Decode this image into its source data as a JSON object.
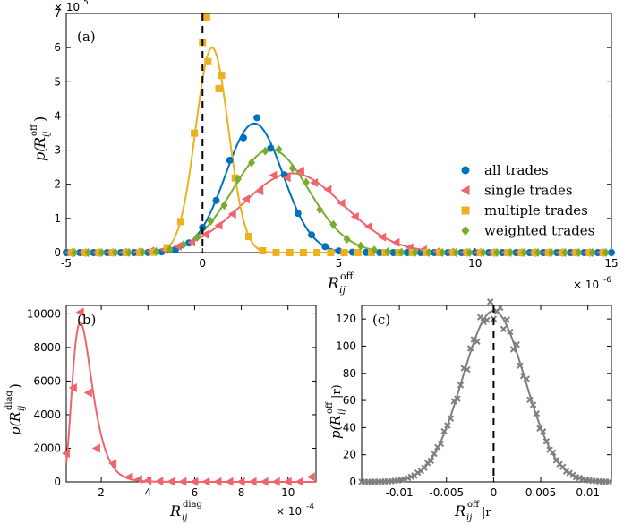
{
  "chart_data": [
    {
      "panel": "(a)",
      "type": "scatter",
      "xlabel_base": "R",
      "xlabel_sub": "ij",
      "xlabel_sup": "off",
      "ylabel_prefix": "p(",
      "ylabel_base": "R",
      "ylabel_sub": "ij",
      "ylabel_sup": "off",
      "ylabel_suffix": ")",
      "xlim": [
        -5,
        15
      ],
      "ylim": [
        0,
        7
      ],
      "xticks": [
        "-5",
        "0",
        "5",
        "10",
        "15"
      ],
      "yticks": [
        "0",
        "1",
        "2",
        "3",
        "4",
        "5",
        "6",
        "7"
      ],
      "x_exponent_base": "× 10",
      "x_exponent": "-6",
      "y_exponent_base": "× 10",
      "y_exponent": "5",
      "vline_x": 0,
      "legend_position": "right",
      "series": [
        {
          "name": "all trades",
          "color": "#0072BD",
          "marker": "circle",
          "mu": 1.9,
          "sigma": 1.05,
          "peak": 3.78
        },
        {
          "name": "single trades",
          "color": "#F0646E",
          "marker": "triangle-left",
          "mu": 3.3,
          "sigma": 1.85,
          "peak": 2.32
        },
        {
          "name": "multiple trades",
          "color": "#EDB120",
          "marker": "square",
          "mu": 0.35,
          "sigma": 0.6,
          "peak": 6.0
        },
        {
          "name": "weighted trades",
          "color": "#77AC30",
          "marker": "diamond",
          "mu": 2.5,
          "sigma": 1.4,
          "peak": 3.02
        }
      ]
    },
    {
      "panel": "(b)",
      "type": "scatter",
      "xlabel_base": "R",
      "xlabel_sub": "ij",
      "xlabel_sup": "diag",
      "ylabel_prefix": "p(",
      "ylabel_base": "R",
      "ylabel_sub": "ij",
      "ylabel_sup": "diag",
      "ylabel_suffix": ")",
      "xlim": [
        0.5,
        11.2
      ],
      "ylim": [
        0,
        10500
      ],
      "xticks": [
        "2",
        "4",
        "6",
        "8",
        "10"
      ],
      "yticks": [
        "0",
        "2000",
        "4000",
        "6000",
        "8000",
        "10000"
      ],
      "x_exponent_base": "× 10",
      "x_exponent": "-4",
      "color": "#F0646E",
      "points_x": [
        0.5,
        0.8,
        1.1,
        1.45,
        1.8,
        2.5,
        3.2,
        3.6,
        4.0,
        4.5,
        5.0,
        5.5,
        6.0,
        6.5,
        7.0,
        7.5,
        8.0,
        8.5,
        9.0,
        9.5,
        10.0,
        10.5,
        11.0
      ],
      "points_y": [
        1700,
        5600,
        10100,
        5300,
        2000,
        1100,
        300,
        150,
        80,
        40,
        20,
        10,
        10,
        10,
        10,
        10,
        10,
        10,
        10,
        10,
        10,
        10,
        300
      ],
      "curve": {
        "peak_x": 1.1,
        "peak_y": 9500
      }
    },
    {
      "panel": "(c)",
      "type": "scatter",
      "xlabel_base": "R",
      "xlabel_sub": "ij",
      "xlabel_sup": "off",
      "xlabel_suffix": "|r",
      "ylabel_prefix": "p(",
      "ylabel_base": "R",
      "ylabel_sub": "ij",
      "ylabel_sup": "off",
      "ylabel_suffix": "|r)",
      "xlim": [
        -0.014,
        0.0125
      ],
      "ylim": [
        0,
        130
      ],
      "xticks": [
        "-0.01",
        "-0.005",
        "0",
        "0.005",
        "0.01"
      ],
      "xtick_values": [
        -0.01,
        -0.005,
        0,
        0.005,
        0.01
      ],
      "yticks": [
        "0",
        "20",
        "40",
        "60",
        "80",
        "100",
        "120"
      ],
      "color": "#7F7F7F",
      "vline_x": 0,
      "mu": 0,
      "sigma": 0.0033,
      "peak": 126
    }
  ]
}
